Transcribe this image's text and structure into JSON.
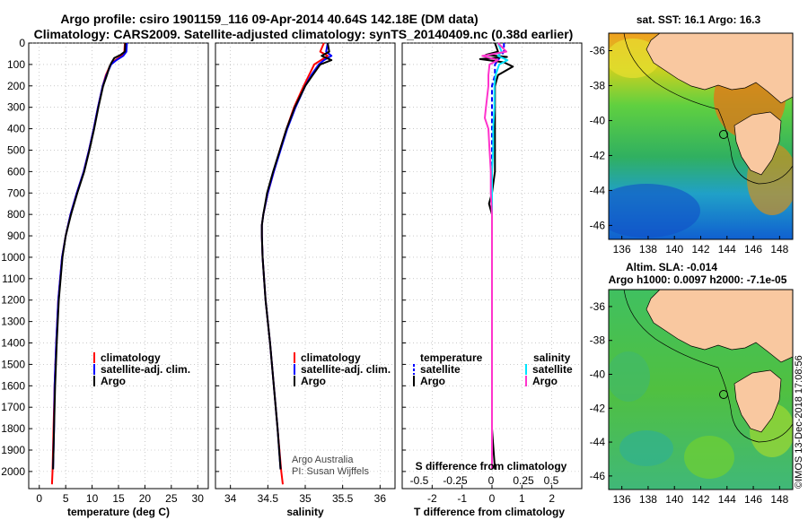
{
  "title_line1": "Argo profile: csiro 1901159_116 09-Apr-2014 40.64S 142.18E (DM data)",
  "title_line2": "Climatology: CARS2009. Satellite-adjusted climatology: synTS_20140409.nc (0.38d earlier)",
  "map_top_title": "sat. SST: 16.1 Argo: 16.3",
  "map_bottom_title1": "Altim. SLA: -0.014",
  "map_bottom_title2": "Argo h1000: 0.0097 h2000: -7.1e-05",
  "credit1": "Argo Australia",
  "credit2": "PI: Susan Wijffels",
  "footer": "©IMOS 13-Dec-2018 17:08:56",
  "colors": {
    "climatology": "#ff0000",
    "satellite": "#0000ff",
    "argo": "#000000",
    "satellite_s": "#00e5ff",
    "argo_s": "#ff33cc",
    "land": "#f9c8a0"
  },
  "chart_data": [
    {
      "type": "line",
      "xlabel": "temperature (deg C)",
      "xlim": [
        -2,
        32
      ],
      "ylim": [
        2080,
        0
      ],
      "x_ticks": [
        0,
        5,
        10,
        15,
        20,
        25,
        30
      ],
      "y_ticks": [
        0,
        100,
        200,
        300,
        400,
        500,
        600,
        700,
        800,
        900,
        1000,
        1100,
        1200,
        1300,
        1400,
        1500,
        1600,
        1700,
        1800,
        1900,
        2000
      ],
      "legend": [
        "climatology",
        "satellite-adj. clim.",
        "Argo"
      ],
      "series": [
        {
          "name": "climatology",
          "depth": [
            0,
            40,
            60,
            80,
            100,
            150,
            200,
            300,
            400,
            500,
            600,
            700,
            800,
            900,
            1000,
            1200,
            1400,
            1600,
            1800,
            2000,
            2060
          ],
          "values": [
            16.2,
            16.1,
            15.6,
            14.4,
            13.5,
            12.6,
            12.0,
            11.1,
            10.3,
            9.4,
            8.4,
            7.1,
            5.9,
            5.0,
            4.3,
            3.6,
            3.2,
            2.9,
            2.7,
            2.5,
            2.4
          ]
        },
        {
          "name": "satellite-adj. clim.",
          "depth": [
            0,
            40,
            60,
            80,
            100,
            150,
            200,
            300,
            400,
            500,
            600,
            700,
            800,
            900,
            1000,
            1200,
            1400,
            1600,
            1800,
            1990
          ],
          "values": [
            16.6,
            16.5,
            15.9,
            14.6,
            13.6,
            12.7,
            12.0,
            11.1,
            10.3,
            9.4,
            8.4,
            7.1,
            5.9,
            5.0,
            4.3,
            3.6,
            3.2,
            2.9,
            2.8,
            2.6
          ]
        },
        {
          "name": "Argo",
          "depth": [
            0,
            40,
            55,
            70,
            90,
            110,
            150,
            200,
            300,
            400,
            500,
            600,
            700,
            800,
            900,
            1000,
            1200,
            1400,
            1600,
            1800,
            1990
          ],
          "values": [
            16.3,
            16.2,
            15.4,
            14.2,
            13.7,
            13.3,
            12.8,
            12.1,
            11.2,
            10.4,
            9.5,
            8.5,
            7.2,
            6.0,
            5.0,
            4.4,
            3.7,
            3.3,
            3.0,
            2.8,
            2.6
          ]
        }
      ]
    },
    {
      "type": "line",
      "xlabel": "salinity",
      "xlim": [
        33.8,
        36.2
      ],
      "ylim": [
        2080,
        0
      ],
      "x_ticks": [
        34,
        34.5,
        35,
        35.5,
        36
      ],
      "legend": [
        "climatology",
        "satellite-adj. clim.",
        "Argo"
      ],
      "series": [
        {
          "name": "climatology",
          "depth": [
            0,
            40,
            60,
            100,
            150,
            200,
            300,
            400,
            500,
            600,
            700,
            800,
            850,
            900,
            1000,
            1200,
            1400,
            1600,
            1800,
            2000,
            2060
          ],
          "values": [
            35.25,
            35.2,
            35.3,
            35.12,
            35.05,
            34.98,
            34.85,
            34.75,
            34.66,
            34.58,
            34.5,
            34.44,
            34.42,
            34.42,
            34.43,
            34.47,
            34.53,
            34.58,
            34.63,
            34.68,
            34.7
          ]
        },
        {
          "name": "satellite-adj. clim.",
          "depth": [
            0,
            40,
            60,
            80,
            100,
            150,
            200,
            300,
            400,
            500,
            600,
            700,
            800,
            850,
            900,
            1000,
            1200,
            1400,
            1600,
            1800,
            1990
          ],
          "values": [
            35.3,
            35.28,
            35.35,
            35.25,
            35.18,
            35.08,
            35.0,
            34.87,
            34.76,
            34.67,
            34.58,
            34.5,
            34.44,
            34.42,
            34.42,
            34.43,
            34.47,
            34.53,
            34.58,
            34.63,
            34.67
          ]
        },
        {
          "name": "Argo",
          "depth": [
            0,
            40,
            60,
            80,
            100,
            150,
            200,
            300,
            400,
            500,
            600,
            700,
            800,
            850,
            900,
            1000,
            1200,
            1400,
            1600,
            1800,
            1990
          ],
          "values": [
            35.3,
            35.32,
            35.22,
            35.35,
            35.2,
            35.1,
            35.0,
            34.86,
            34.75,
            34.66,
            34.57,
            34.49,
            34.44,
            34.42,
            34.42,
            34.43,
            34.47,
            34.53,
            34.58,
            34.63,
            34.67
          ]
        }
      ]
    },
    {
      "type": "line",
      "xlabel": "T difference from climatology",
      "xlim": [
        -3,
        3
      ],
      "ylim": [
        2080,
        0
      ],
      "x_ticks": [
        -2,
        -1,
        0,
        1,
        2
      ],
      "top_axis_label": "S difference from climatology",
      "top_ticks": [
        "-0.5",
        "-0.25",
        "0",
        "0.25",
        "0.5"
      ],
      "legend_temperature_heading": "temperature",
      "legend_salinity_heading": "salinity",
      "legend": [
        "satellite",
        "Argo",
        "satellite",
        "Argo"
      ],
      "series": [
        {
          "name": "temperature satellite",
          "depth": [
            0,
            40,
            60,
            80,
            100,
            150,
            200,
            300,
            400,
            600,
            800,
            1000,
            1200,
            1500,
            1990
          ],
          "values": [
            0.4,
            0.4,
            0.3,
            0.2,
            0.1,
            0.1,
            0.0,
            0.0,
            0.0,
            0.0,
            0.0,
            0.0,
            0.0,
            0.0,
            0.0
          ]
        },
        {
          "name": "temperature Argo",
          "depth": [
            0,
            40,
            55,
            65,
            75,
            90,
            110,
            150,
            200,
            300,
            400,
            500,
            600,
            700,
            750,
            800,
            900,
            1000,
            1200,
            1400,
            1600,
            1800,
            1990
          ],
          "values": [
            0.1,
            0.2,
            -0.2,
            0.5,
            -0.4,
            0.4,
            0.7,
            0.2,
            0.1,
            0.1,
            0.1,
            0.1,
            0.1,
            0.0,
            -0.1,
            0.0,
            0.0,
            0.0,
            0.0,
            0.0,
            0.0,
            0.0,
            0.1
          ]
        },
        {
          "name": "salinity satellite",
          "depth": [
            0,
            40,
            60,
            80,
            100,
            150,
            200,
            300,
            400,
            500,
            600,
            700,
            800,
            900,
            1000,
            1200,
            1400,
            1600,
            1800,
            1990
          ],
          "values": [
            0.05,
            0.08,
            0.05,
            0.13,
            0.06,
            0.03,
            0.02,
            0.02,
            0.01,
            0.01,
            0.0,
            0.0,
            0.0,
            0.0,
            0.0,
            0.0,
            0.0,
            0.0,
            0.0,
            0.0
          ]
        },
        {
          "name": "salinity Argo",
          "depth": [
            0,
            40,
            60,
            80,
            100,
            150,
            200,
            300,
            350,
            400,
            500,
            600,
            700,
            800,
            900,
            1000,
            1200,
            1400,
            1600,
            1800,
            1990
          ],
          "values": [
            0.05,
            0.12,
            -0.08,
            0.05,
            -0.02,
            -0.03,
            -0.03,
            -0.05,
            -0.06,
            -0.03,
            -0.02,
            -0.01,
            -0.01,
            0.0,
            0.0,
            0.0,
            0.0,
            0.0,
            0.0,
            0.0,
            0.0
          ]
        }
      ]
    },
    {
      "type": "heatmap",
      "title": "sat. SST: 16.1 Argo: 16.3",
      "x_ticks": [
        136,
        138,
        140,
        142,
        144,
        146,
        148
      ],
      "y_ticks": [
        -36,
        -38,
        -40,
        -42,
        -44,
        -46
      ],
      "xlim": [
        135,
        149
      ],
      "ylim": [
        -46.8,
        -35
      ]
    },
    {
      "type": "heatmap",
      "title": "Altim. SLA: -0.014",
      "x_ticks": [
        136,
        138,
        140,
        142,
        144,
        146,
        148
      ],
      "y_ticks": [
        -36,
        -38,
        -40,
        -42,
        -44,
        -46
      ],
      "xlim": [
        135,
        149
      ],
      "ylim": [
        -46.8,
        -35
      ]
    }
  ]
}
